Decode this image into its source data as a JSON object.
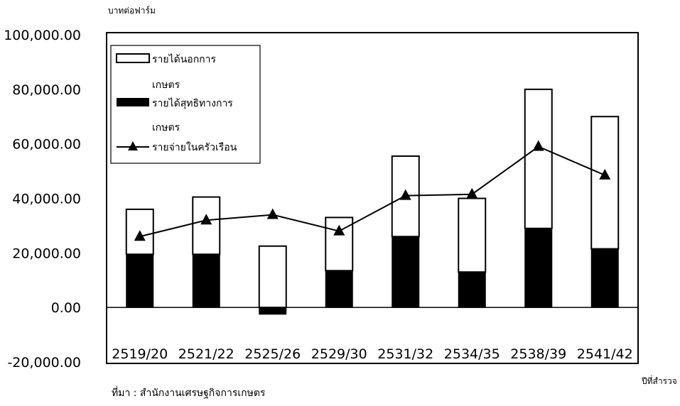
{
  "chart_data": {
    "type": "bar",
    "ylabel": "บาทต่อฟาร์ม",
    "xlabel": "ปีที่สำรวจ",
    "source": "ที่มา : สำนักงานเศรษฐกิจการเกษตร",
    "categories": [
      "2519/20",
      "2521/22",
      "2525/26",
      "2529/30",
      "2531/32",
      "2534/35",
      "2538/39",
      "2541/42"
    ],
    "y_ticks": [
      "100,000.00",
      "80,000.00",
      "60,000.00",
      "40,000.00",
      "20,000.00",
      "0.00",
      "-20,000.00"
    ],
    "ylim": [
      -20000,
      100000
    ],
    "grid": false,
    "legend_position": "top-left",
    "series": [
      {
        "name": "รายได้สุทธิทางการเกษตร",
        "kind": "bar",
        "color": "#000000",
        "values": [
          19500,
          19500,
          -2500,
          13500,
          26000,
          13000,
          29000,
          21500
        ]
      },
      {
        "name": "รายได้นอกการเกษตร",
        "kind": "stacked-bar",
        "color": "#ffffff",
        "values": [
          16500,
          21000,
          22500,
          19500,
          29500,
          27000,
          51000,
          48500
        ]
      },
      {
        "name": "รายจ่ายในครัวเรือน",
        "kind": "line",
        "marker": "triangle",
        "color": "#000000",
        "values": [
          26000,
          32000,
          34000,
          28000,
          41000,
          41500,
          59000,
          48500
        ]
      }
    ],
    "legend": {
      "items": [
        {
          "line1": "รายได้นอกการ",
          "line2": "เกษตร",
          "symbol": "white-box"
        },
        {
          "line1": "รายได้สุทธิทางการ",
          "line2": "เกษตร",
          "symbol": "black-box"
        },
        {
          "line1": "รายจ่ายในครัวเรือน",
          "line2": "",
          "symbol": "line-triangle"
        }
      ]
    }
  }
}
